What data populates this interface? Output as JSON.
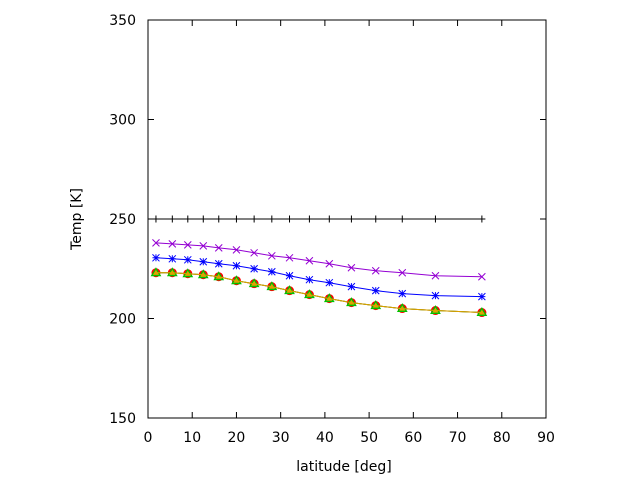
{
  "chart_data": {
    "type": "line",
    "title": "",
    "xlabel": "latitude [deg]",
    "ylabel": "Temp [K]",
    "xlim": [
      0,
      90
    ],
    "ylim": [
      150,
      350
    ],
    "xticks": [
      0,
      10,
      20,
      30,
      40,
      50,
      60,
      70,
      80,
      90
    ],
    "yticks": [
      150,
      200,
      250,
      300,
      350
    ],
    "grid": false,
    "legend": "none",
    "x": [
      1.8,
      5.5,
      9,
      12.5,
      16,
      20,
      24,
      28,
      32,
      36.5,
      41,
      46,
      51.5,
      57.5,
      65,
      75.5
    ],
    "series": [
      {
        "color": "#000000",
        "marker": "plus",
        "values": [
          250,
          250,
          250,
          250,
          250,
          250,
          250,
          250,
          250,
          250,
          250,
          250,
          250,
          250,
          250,
          250
        ]
      },
      {
        "color": "#9400d3",
        "marker": "x",
        "values": [
          238,
          237.5,
          237,
          236.5,
          235.5,
          234.5,
          233,
          231.5,
          230.5,
          229,
          227.5,
          225.5,
          224,
          223,
          221.5,
          221
        ]
      },
      {
        "color": "#0000ff",
        "marker": "asterisk",
        "values": [
          230.5,
          230,
          229.5,
          228.5,
          227.5,
          226.5,
          225,
          223.5,
          221.5,
          219.5,
          218,
          216,
          214,
          212.5,
          211.5,
          211
        ]
      },
      {
        "color": "#ff0000",
        "marker": "circle",
        "values": [
          223,
          223,
          222.5,
          222,
          221,
          219,
          217.5,
          216,
          214,
          212,
          210,
          208,
          206.5,
          205,
          204,
          203
        ]
      },
      {
        "color": "#00c000",
        "marker": "triangle",
        "values": [
          223,
          223,
          222.5,
          222,
          221,
          219,
          217.5,
          216,
          214,
          212,
          210,
          208,
          206.5,
          205,
          204,
          203
        ]
      },
      {
        "color": "#e0a000",
        "marker": "triangle-small",
        "values": [
          223,
          223,
          222.5,
          222,
          221,
          219,
          217.5,
          216,
          214,
          212,
          210,
          208,
          206.5,
          205,
          204,
          203
        ]
      }
    ]
  }
}
